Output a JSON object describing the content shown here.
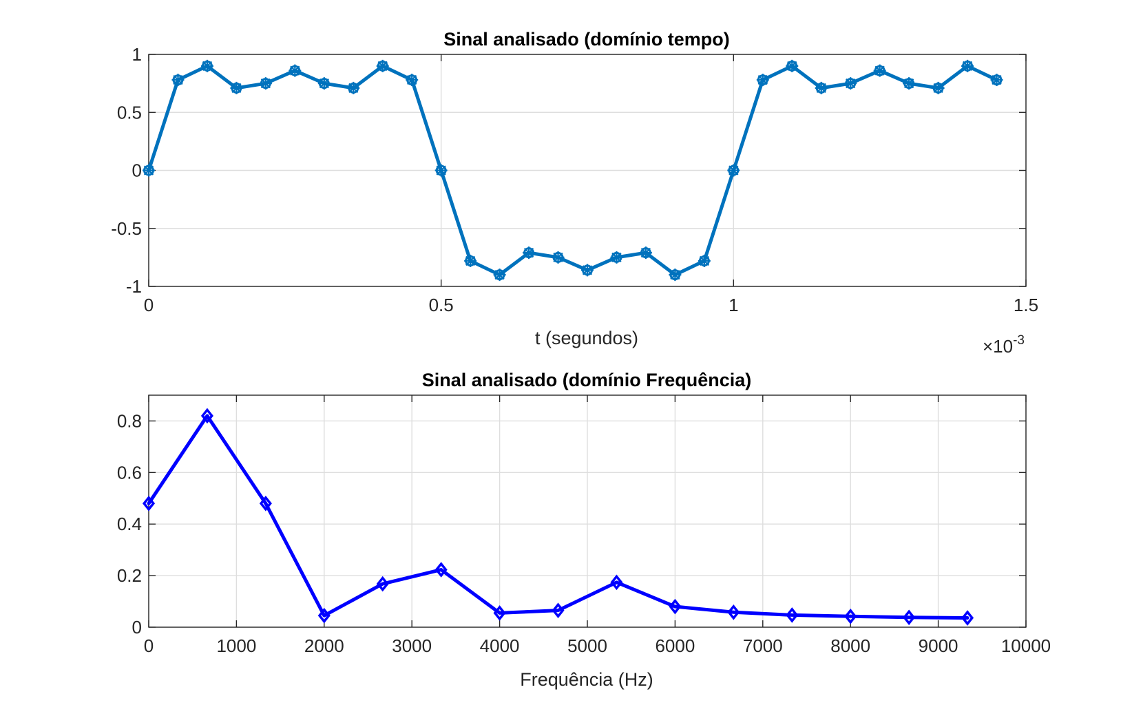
{
  "chart_data": [
    {
      "type": "line",
      "title": "Sinal analisado (domínio tempo)",
      "xlabel": "t (segundos)",
      "ylabel": "",
      "x_exponent_label": "×10",
      "x_exponent_power": "-3",
      "xlim": [
        0,
        1.5
      ],
      "ylim": [
        -1,
        1
      ],
      "xticks": [
        0,
        0.5,
        1,
        1.5
      ],
      "xtick_labels": [
        "0",
        "0.5",
        "1",
        "1.5"
      ],
      "yticks": [
        -1,
        -0.5,
        0,
        0.5,
        1
      ],
      "ytick_labels": [
        "-1",
        "-0.5",
        "0",
        "0.5",
        "1"
      ],
      "grid": true,
      "marker": "asterisk-circle",
      "series": [
        {
          "color": "#0072bd",
          "x": [
            0,
            0.05,
            0.1,
            0.15,
            0.2,
            0.25,
            0.3,
            0.35,
            0.4,
            0.45,
            0.5,
            0.55,
            0.6,
            0.65,
            0.7,
            0.75,
            0.8,
            0.85,
            0.9,
            0.95,
            1.0,
            1.05,
            1.1,
            1.15,
            1.2,
            1.25,
            1.3,
            1.35,
            1.4,
            1.45
          ],
          "y": [
            0,
            0.78,
            0.9,
            0.71,
            0.75,
            0.86,
            0.75,
            0.71,
            0.9,
            0.78,
            0,
            -0.78,
            -0.9,
            -0.71,
            -0.75,
            -0.86,
            -0.75,
            -0.71,
            -0.9,
            -0.78,
            0,
            0.78,
            0.9,
            0.71,
            0.75,
            0.86,
            0.75,
            0.71,
            0.9,
            0.78
          ]
        }
      ]
    },
    {
      "type": "line",
      "title": "Sinal analisado (domínio Frequência)",
      "xlabel": "Frequência (Hz)",
      "ylabel": "",
      "xlim": [
        0,
        10000
      ],
      "ylim": [
        0,
        0.9
      ],
      "xticks": [
        0,
        1000,
        2000,
        3000,
        4000,
        5000,
        6000,
        7000,
        8000,
        9000,
        10000
      ],
      "xtick_labels": [
        "0",
        "1000",
        "2000",
        "3000",
        "4000",
        "5000",
        "6000",
        "7000",
        "8000",
        "9000",
        "10000"
      ],
      "yticks": [
        0,
        0.2,
        0.4,
        0.6,
        0.8
      ],
      "ytick_labels": [
        "0",
        "0.2",
        "0.4",
        "0.6",
        "0.8"
      ],
      "grid": true,
      "marker": "diamond",
      "series": [
        {
          "color": "#0000ff",
          "x": [
            0,
            666.7,
            1333.3,
            2000,
            2666.7,
            3333.3,
            4000,
            4666.7,
            5333.3,
            6000,
            6666.7,
            7333.3,
            8000,
            8666.7,
            9333.3
          ],
          "y": [
            0.48,
            0.82,
            0.48,
            0.045,
            0.168,
            0.223,
            0.055,
            0.065,
            0.174,
            0.08,
            0.058,
            0.047,
            0.042,
            0.038,
            0.036
          ]
        }
      ]
    }
  ]
}
